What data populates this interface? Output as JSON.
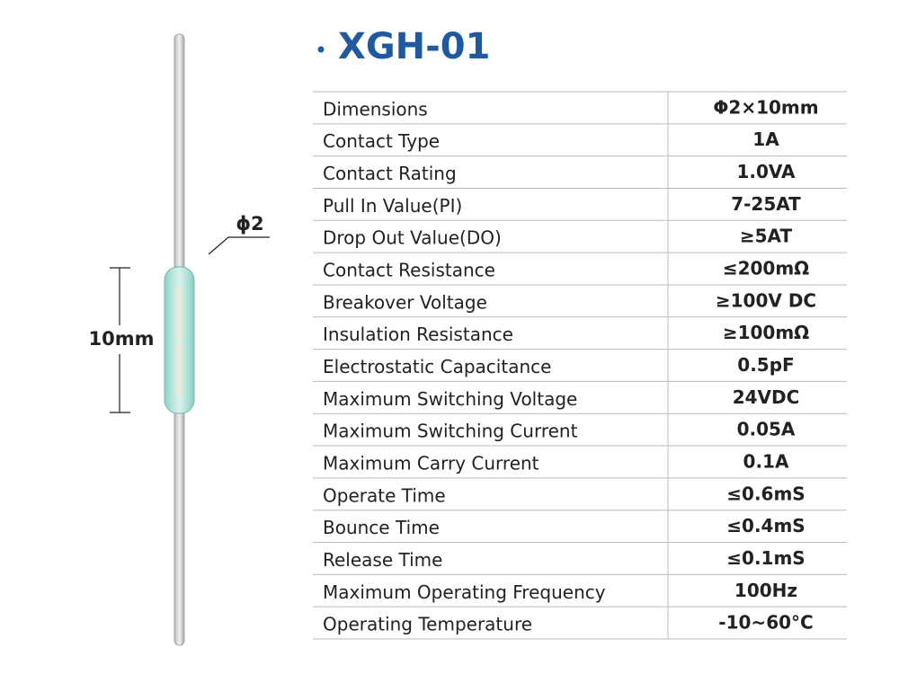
{
  "title": "XGH-01",
  "diagram": {
    "diameter_label": "ϕ2",
    "length_label": "10mm"
  },
  "table": {
    "rows": [
      [
        "Dimensions",
        "Φ2×10mm"
      ],
      [
        "Contact Type",
        "1A"
      ],
      [
        "Contact Rating",
        "1.0VA"
      ],
      [
        "Pull In Value(PI)",
        "7-25AT"
      ],
      [
        "Drop Out Value(DO)",
        "≥5AT"
      ],
      [
        "Contact Resistance",
        "≤200mΩ"
      ],
      [
        "Breakover Voltage",
        "≥100V DC"
      ],
      [
        "Insulation Resistance",
        "≥100mΩ"
      ],
      [
        "Electrostatic Capacitance",
        "0.5pF"
      ],
      [
        "Maximum Switching Voltage",
        "24VDC"
      ],
      [
        "Maximum Switching Current",
        "0.05A"
      ],
      [
        "Maximum Carry Current",
        "0.1A"
      ],
      [
        "Operate Time",
        "≤0.6mS"
      ],
      [
        "Bounce Time",
        "≤0.4mS"
      ],
      [
        "Release Time",
        "≤0.1mS"
      ],
      [
        "Maximum Operating Frequency",
        "100Hz"
      ],
      [
        "Operating Temperature",
        "-10~60°C"
      ]
    ]
  }
}
